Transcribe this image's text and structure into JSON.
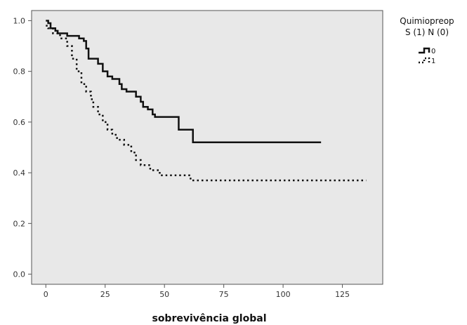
{
  "chart_data": {
    "type": "line",
    "title": "",
    "xlabel": "sobrevivência global",
    "ylabel": "",
    "xlim": [
      -6,
      142
    ],
    "ylim": [
      -0.04,
      1.04
    ],
    "x_ticks": [
      0,
      25,
      50,
      75,
      100,
      125
    ],
    "y_ticks": [
      0.0,
      0.2,
      0.4,
      0.6,
      0.8,
      1.0
    ],
    "y_tick_labels": [
      "0.0",
      "0.2",
      "0.4",
      "0.6",
      "0.8",
      "1.0"
    ],
    "grid": false,
    "background": "#e8e8e8",
    "legend": {
      "title_line1": "Quimiopreop",
      "title_line2": "S (1) N (0)",
      "placement": "top-right-outside"
    },
    "series": [
      {
        "name": "0",
        "style": "solid",
        "color": "#111111",
        "points": [
          [
            0,
            1.0
          ],
          [
            1,
            0.99
          ],
          [
            2,
            0.97
          ],
          [
            4,
            0.96
          ],
          [
            5,
            0.95
          ],
          [
            8,
            0.95
          ],
          [
            9,
            0.94
          ],
          [
            13,
            0.94
          ],
          [
            14,
            0.93
          ],
          [
            16,
            0.92
          ],
          [
            17,
            0.89
          ],
          [
            18,
            0.85
          ],
          [
            21,
            0.85
          ],
          [
            22,
            0.83
          ],
          [
            24,
            0.8
          ],
          [
            26,
            0.78
          ],
          [
            28,
            0.77
          ],
          [
            30,
            0.77
          ],
          [
            31,
            0.75
          ],
          [
            32,
            0.73
          ],
          [
            34,
            0.72
          ],
          [
            37,
            0.72
          ],
          [
            38,
            0.7
          ],
          [
            40,
            0.68
          ],
          [
            41,
            0.66
          ],
          [
            43,
            0.65
          ],
          [
            45,
            0.63
          ],
          [
            46,
            0.62
          ],
          [
            55,
            0.62
          ],
          [
            56,
            0.57
          ],
          [
            61,
            0.57
          ],
          [
            62,
            0.52
          ],
          [
            116,
            0.52
          ]
        ]
      },
      {
        "name": "1",
        "style": "dotted",
        "color": "#111111",
        "points": [
          [
            0,
            0.98
          ],
          [
            1,
            0.97
          ],
          [
            3,
            0.95
          ],
          [
            6,
            0.93
          ],
          [
            9,
            0.9
          ],
          [
            11,
            0.85
          ],
          [
            13,
            0.8
          ],
          [
            15,
            0.75
          ],
          [
            17,
            0.72
          ],
          [
            19,
            0.69
          ],
          [
            20,
            0.66
          ],
          [
            22,
            0.63
          ],
          [
            24,
            0.6
          ],
          [
            26,
            0.57
          ],
          [
            28,
            0.55
          ],
          [
            30,
            0.53
          ],
          [
            33,
            0.51
          ],
          [
            36,
            0.48
          ],
          [
            38,
            0.45
          ],
          [
            40,
            0.43
          ],
          [
            44,
            0.41
          ],
          [
            48,
            0.39
          ],
          [
            60,
            0.39
          ],
          [
            61,
            0.37
          ],
          [
            135,
            0.37
          ]
        ]
      }
    ]
  }
}
